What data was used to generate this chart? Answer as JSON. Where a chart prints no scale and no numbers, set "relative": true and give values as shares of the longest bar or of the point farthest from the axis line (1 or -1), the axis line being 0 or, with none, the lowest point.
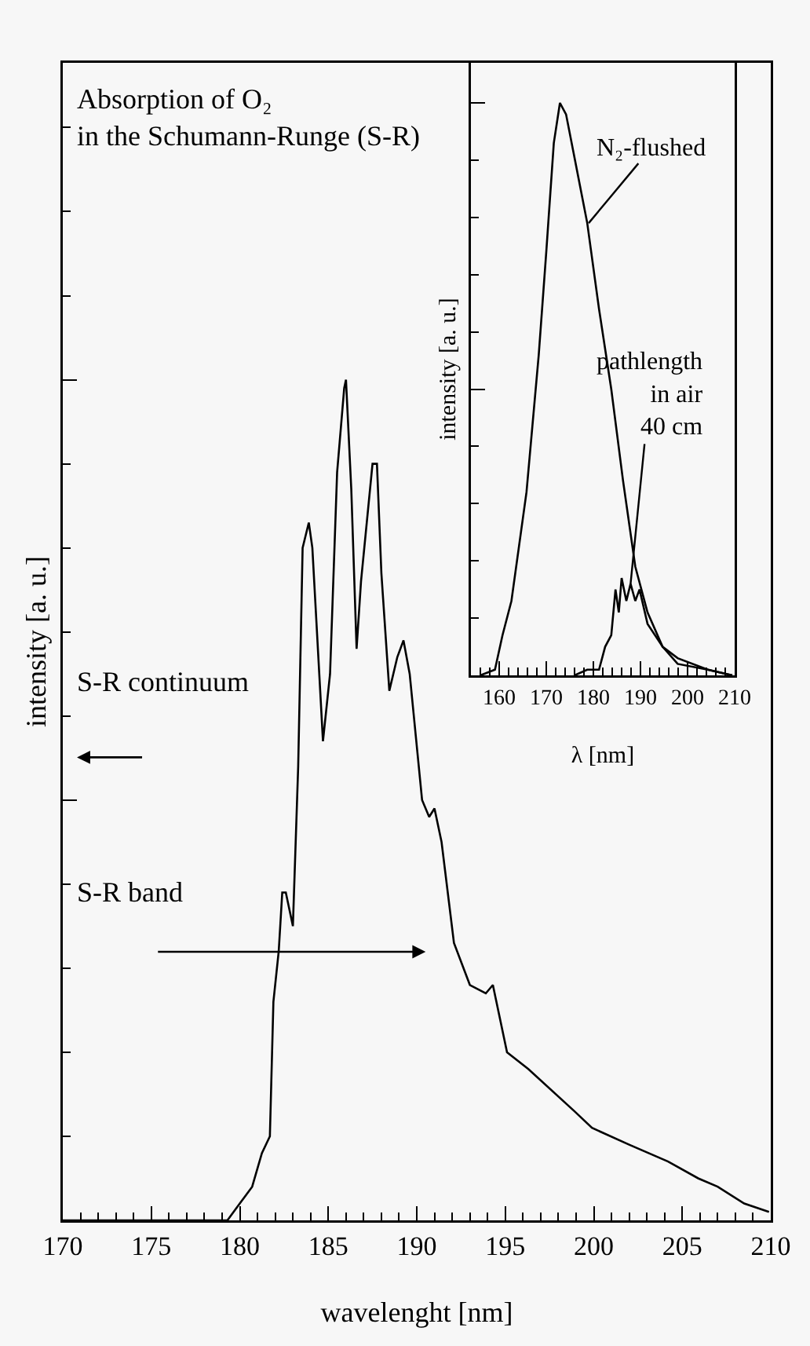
{
  "chart_data": [
    {
      "type": "line",
      "title": "Absorption of O₂\nin the Schumann-Runge (S-R)",
      "xlabel": "wavelenght [nm]",
      "ylabel": "intensity [a. u.]",
      "annotations": [
        "S-R continuum",
        "S-R band"
      ],
      "relative": true,
      "xlim": [
        170,
        210
      ],
      "xticks": [
        170,
        175,
        180,
        185,
        190,
        195,
        200,
        205,
        210
      ],
      "x": [
        170,
        175,
        178,
        179.3,
        180.0,
        180.7,
        181.25,
        181.7,
        181.9,
        182.2,
        182.4,
        182.6,
        183.0,
        183.3,
        183.55,
        183.9,
        184.1,
        184.7,
        185.1,
        185.5,
        185.9,
        186.0,
        186.3,
        186.6,
        186.85,
        187.5,
        187.75,
        188.0,
        188.45,
        188.9,
        189.25,
        189.6,
        190.3,
        190.7,
        191.0,
        191.4,
        192.1,
        193.0,
        193.9,
        194.3,
        195.1,
        196.3,
        198.9,
        199.9,
        202.0,
        204.2,
        205.9,
        207.0,
        208.5,
        209.9
      ],
      "series": [
        {
          "color": "#000000",
          "values": [
            0,
            0,
            0,
            0,
            0.02,
            0.04,
            0.08,
            0.1,
            0.26,
            0.32,
            0.39,
            0.39,
            0.35,
            0.54,
            0.8,
            0.83,
            0.8,
            0.57,
            0.65,
            0.89,
            0.99,
            1.0,
            0.87,
            0.68,
            0.76,
            0.9,
            0.9,
            0.77,
            0.63,
            0.67,
            0.69,
            0.65,
            0.5,
            0.48,
            0.49,
            0.45,
            0.33,
            0.28,
            0.27,
            0.28,
            0.2,
            0.18,
            0.13,
            0.11,
            0.09,
            0.07,
            0.05,
            0.04,
            0.02,
            0.01
          ]
        }
      ]
    },
    {
      "type": "line",
      "xlabel": "λ [nm]",
      "ylabel": "intensity [a. u.]",
      "relative": true,
      "xlim": [
        154,
        210
      ],
      "xticks": [
        160,
        170,
        180,
        190,
        200,
        210
      ],
      "annotations": [
        {
          "text": "N₂-flushed",
          "x": 179,
          "y": 0.79
        },
        {
          "text": "pathlength\nin air\n40 cm",
          "x": 187.9,
          "y": 0.16
        }
      ],
      "series": [
        {
          "color": "#000000",
          "x": [
            156,
            159.1,
            160.7,
            162.6,
            165.8,
            168.4,
            170,
            171.6,
            172.9,
            174.2,
            176.1,
            178.7,
            181.2,
            183.8,
            186.3,
            188.9,
            191.5,
            194.7,
            197.9,
            204.3,
            209.5
          ],
          "values": [
            0,
            0.01,
            0.07,
            0.13,
            0.32,
            0.56,
            0.74,
            0.93,
            1.0,
            0.98,
            0.9,
            0.79,
            0.64,
            0.5,
            0.34,
            0.19,
            0.11,
            0.05,
            0.03,
            0.01,
            0
          ]
        },
        {
          "color": "#000000",
          "x": [
            176,
            178.7,
            181.2,
            182.5,
            183.8,
            184.7,
            185.4,
            186.0,
            187.0,
            187.9,
            188.9,
            189.8,
            191.5,
            194.7,
            197.9,
            204.3,
            209.5
          ],
          "values": [
            0,
            0.01,
            0.01,
            0.05,
            0.07,
            0.15,
            0.11,
            0.17,
            0.13,
            0.16,
            0.13,
            0.15,
            0.09,
            0.05,
            0.02,
            0.01,
            0
          ]
        }
      ]
    }
  ]
}
